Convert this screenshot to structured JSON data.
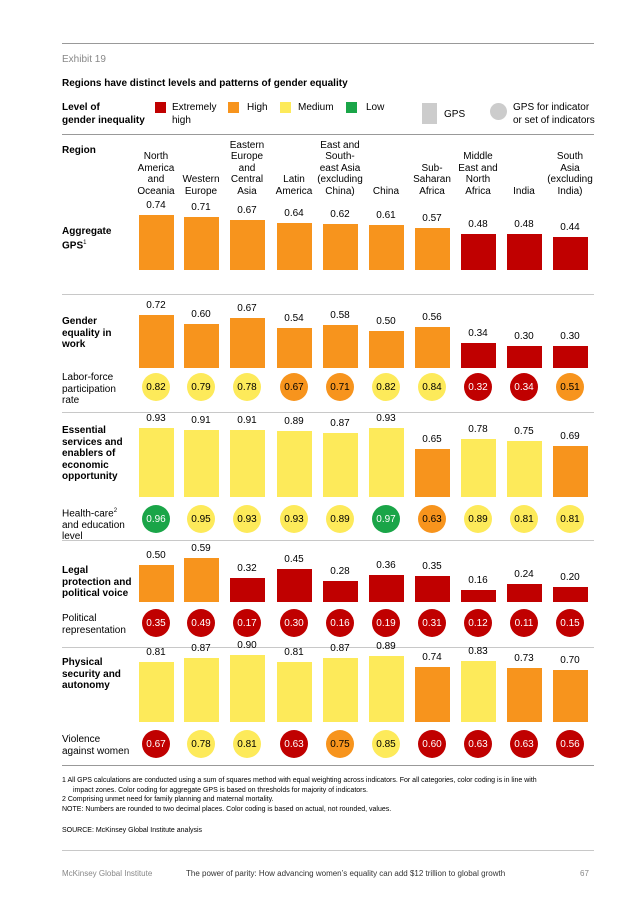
{
  "exhibit": "Exhibit 19",
  "title": "Regions have distinct levels and patterns of gender equality",
  "legend": {
    "level_label_1": "Level of",
    "level_label_2": "gender inequality",
    "extremely_high_1": "Extremely",
    "extremely_high_2": "high",
    "high": "High",
    "medium": "Medium",
    "low": "Low",
    "gps": "GPS",
    "gps_indicator_1": "GPS for indicator",
    "gps_indicator_2": "or set of indicators"
  },
  "colors": {
    "extremely_high": "#c00000",
    "high": "#f7941d",
    "medium": "#fdea5a",
    "low": "#1aa548",
    "gps_gray": "#cccccc"
  },
  "region_label": "Region",
  "regions": [
    [
      "North",
      "America",
      "and",
      "Oceania"
    ],
    [
      "Western",
      "Europe"
    ],
    [
      "Eastern",
      "Europe",
      "and",
      "Central",
      "Asia"
    ],
    [
      "Latin",
      "America"
    ],
    [
      "East and",
      "South-",
      "east Asia",
      "(excluding",
      "China)"
    ],
    [
      "China"
    ],
    [
      "Sub-",
      "Saharan",
      "Africa"
    ],
    [
      "Middle",
      "East and",
      "North",
      "Africa"
    ],
    [
      "India"
    ],
    [
      "South",
      "Asia",
      "(excluding",
      "India)"
    ]
  ],
  "chart_data": {
    "type": "bar",
    "categories": [
      "North America and Oceania",
      "Western Europe",
      "Eastern Europe and Central Asia",
      "Latin America",
      "East and Southeast Asia (excluding China)",
      "China",
      "Sub-Saharan Africa",
      "Middle East and North Africa",
      "India",
      "South Asia (excluding India)"
    ],
    "level_scale": [
      "Extremely high",
      "High",
      "Medium",
      "Low"
    ],
    "sections": [
      {
        "label_lines": [
          "Aggregate",
          "GPS"
        ],
        "superscript": "1",
        "bars": {
          "values": [
            0.74,
            0.71,
            0.67,
            0.64,
            0.62,
            0.61,
            0.57,
            0.48,
            0.48,
            0.44
          ],
          "levels": [
            "high",
            "high",
            "high",
            "high",
            "high",
            "high",
            "high",
            "extremely_high",
            "extremely_high",
            "extremely_high"
          ],
          "labels": [
            "0.74",
            "0.71",
            "0.67",
            "0.64",
            "0.62",
            "0.61",
            "0.57",
            "0.48",
            "0.48",
            "0.44"
          ]
        }
      },
      {
        "label_lines": [
          "Gender",
          "equality in",
          "work"
        ],
        "bars": {
          "values": [
            0.72,
            0.6,
            0.67,
            0.54,
            0.58,
            0.5,
            0.56,
            0.34,
            0.3,
            0.3
          ],
          "levels": [
            "high",
            "high",
            "high",
            "high",
            "high",
            "high",
            "high",
            "extremely_high",
            "extremely_high",
            "extremely_high"
          ],
          "labels": [
            "0.72",
            "0.60",
            "0.67",
            "0.54",
            "0.58",
            "0.50",
            "0.56",
            "0.34",
            "0.30",
            "0.30"
          ]
        },
        "indicator": {
          "label_lines": [
            "Labor-force",
            "participation",
            "rate"
          ],
          "values": [
            0.82,
            0.79,
            0.78,
            0.67,
            0.71,
            0.82,
            0.84,
            0.32,
            0.34,
            0.51
          ],
          "levels": [
            "medium",
            "medium",
            "medium",
            "high",
            "high",
            "medium",
            "medium",
            "extremely_high",
            "extremely_high",
            "high"
          ],
          "labels": [
            "0.82",
            "0.79",
            "0.78",
            "0.67",
            "0.71",
            "0.82",
            "0.84",
            "0.32",
            "0.34",
            "0.51"
          ]
        }
      },
      {
        "label_lines": [
          "Essential",
          "services and",
          "enablers of",
          "economic",
          "opportunity"
        ],
        "bars": {
          "values": [
            0.93,
            0.91,
            0.91,
            0.89,
            0.87,
            0.93,
            0.65,
            0.78,
            0.75,
            0.69
          ],
          "levels": [
            "medium",
            "medium",
            "medium",
            "medium",
            "medium",
            "medium",
            "high",
            "medium",
            "medium",
            "high"
          ],
          "labels": [
            "0.93",
            "0.91",
            "0.91",
            "0.89",
            "0.87",
            "0.93",
            "0.65",
            "0.78",
            "0.75",
            "0.69"
          ]
        },
        "indicator": {
          "label_lines": [
            "Health-care",
            "and education",
            "level"
          ],
          "superscript": "2",
          "values": [
            0.96,
            0.95,
            0.93,
            0.93,
            0.89,
            0.97,
            0.63,
            0.89,
            0.81,
            0.81
          ],
          "levels": [
            "low",
            "medium",
            "medium",
            "medium",
            "medium",
            "low",
            "high",
            "medium",
            "medium",
            "medium"
          ],
          "labels": [
            "0.96",
            "0.95",
            "0.93",
            "0.93",
            "0.89",
            "0.97",
            "0.63",
            "0.89",
            "0.81",
            "0.81"
          ]
        }
      },
      {
        "label_lines": [
          "Legal",
          "protection and",
          "political voice"
        ],
        "bars": {
          "values": [
            0.5,
            0.59,
            0.32,
            0.45,
            0.28,
            0.36,
            0.35,
            0.16,
            0.24,
            0.2
          ],
          "levels": [
            "high",
            "high",
            "extremely_high",
            "extremely_high",
            "extremely_high",
            "extremely_high",
            "extremely_high",
            "extremely_high",
            "extremely_high",
            "extremely_high"
          ],
          "labels": [
            "0.50",
            "0.59",
            "0.32",
            "0.45",
            "0.28",
            "0.36",
            "0.35",
            "0.16",
            "0.24",
            "0.20"
          ]
        },
        "indicator": {
          "label_lines": [
            "Political",
            "representation"
          ],
          "values": [
            0.35,
            0.49,
            0.17,
            0.3,
            0.16,
            0.19,
            0.31,
            0.12,
            0.11,
            0.15
          ],
          "levels": [
            "extremely_high",
            "extremely_high",
            "extremely_high",
            "extremely_high",
            "extremely_high",
            "extremely_high",
            "extremely_high",
            "extremely_high",
            "extremely_high",
            "extremely_high"
          ],
          "labels": [
            "0.35",
            "0.49",
            "0.17",
            "0.30",
            "0.16",
            "0.19",
            "0.31",
            "0.12",
            "0.11",
            "0.15"
          ]
        }
      },
      {
        "label_lines": [
          "Physical",
          "security and",
          "autonomy"
        ],
        "bars": {
          "values": [
            0.81,
            0.87,
            0.9,
            0.81,
            0.87,
            0.89,
            0.74,
            0.83,
            0.73,
            0.7
          ],
          "levels": [
            "medium",
            "medium",
            "medium",
            "medium",
            "medium",
            "medium",
            "high",
            "medium",
            "high",
            "high"
          ],
          "labels": [
            "0.81",
            "0.87",
            "0.90",
            "0.81",
            "0.87",
            "0.89",
            "0.74",
            "0.83",
            "0.73",
            "0.70"
          ]
        },
        "indicator": {
          "label_lines": [
            "Violence",
            "against women"
          ],
          "values": [
            0.67,
            0.78,
            0.81,
            0.63,
            0.75,
            0.85,
            0.6,
            0.63,
            0.63,
            0.56
          ],
          "levels": [
            "extremely_high",
            "medium",
            "medium",
            "extremely_high",
            "high",
            "medium",
            "extremely_high",
            "extremely_high",
            "extremely_high",
            "extremely_high"
          ],
          "labels": [
            "0.67",
            "0.78",
            "0.81",
            "0.63",
            "0.75",
            "0.85",
            "0.60",
            "0.63",
            "0.63",
            "0.56"
          ]
        }
      }
    ]
  },
  "notes": {
    "n1_a": "1  All GPS calculations are conducted using a sum of squares method with equal weighting across indicators. For all categories, color coding is in line with",
    "n1_b": "impact zones. Color coding for aggregate GPS is based on thresholds for majority of indicators.",
    "n2": "2  Comprising unmet need for family planning and maternal mortality.",
    "note": "NOTE: Numbers are rounded to two decimal places. Color coding is based on actual, not rounded, values."
  },
  "source": "SOURCE: McKinsey Global Institute analysis",
  "footer": {
    "left": "McKinsey Global Institute",
    "center": "The power of parity: How advancing women’s equality can add $12 trillion to global growth",
    "page": "67"
  }
}
